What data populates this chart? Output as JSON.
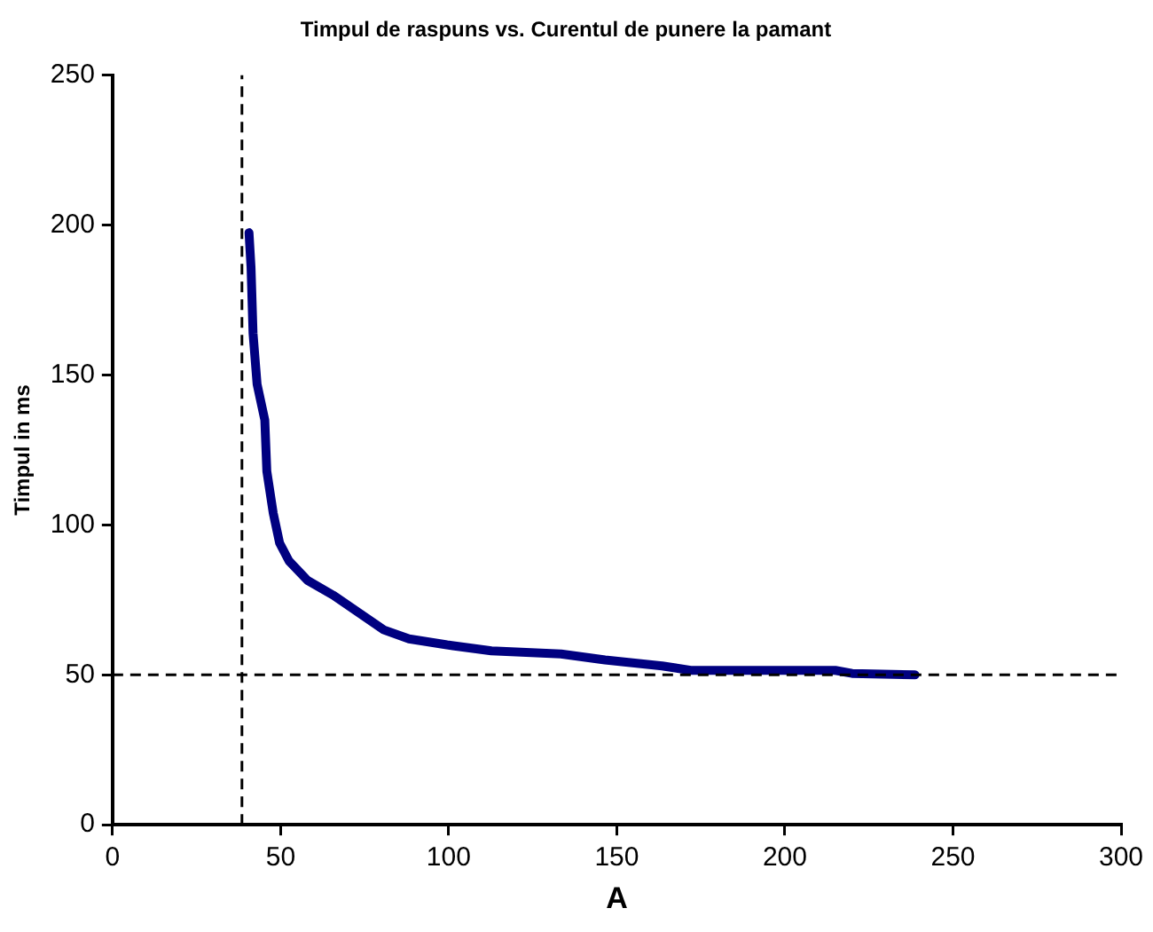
{
  "chart_data": {
    "type": "line",
    "title": "Timpul de raspuns vs. Curentul de punere la pamant",
    "xlabel": "A",
    "ylabel": "Timpul in ms",
    "xlim": [
      0,
      300
    ],
    "xticks": [
      0,
      50,
      100,
      150,
      200,
      250,
      300
    ],
    "ylim": [
      0,
      250
    ],
    "yticks": [
      0,
      50,
      100,
      150,
      200,
      250
    ],
    "grid": false,
    "legend": false,
    "marker": "none",
    "line_style": "solid",
    "series": [
      {
        "color": "#000080",
        "x": [
          40.6,
          41.2,
          41.8,
          43,
          45.3,
          45.9,
          47.8,
          49.7,
          52.5,
          58,
          65.6,
          73.2,
          80.7,
          88.2,
          99.5,
          112.7,
          133.4,
          146.5,
          163.5,
          172,
          215,
          220,
          238.7
        ],
        "values": [
          197.5,
          186,
          164,
          147,
          135,
          118,
          104,
          94,
          88,
          81.5,
          76.6,
          70.8,
          65,
          62,
          60,
          58,
          57,
          55,
          53,
          51.5,
          51.5,
          50.5,
          50
        ]
      }
    ],
    "ref_lines": [
      {
        "axis": "x",
        "value": 38.5,
        "color": "#000000",
        "line_style": "dashed"
      },
      {
        "axis": "y",
        "value": 50,
        "color": "#000000",
        "line_style": "dashed"
      }
    ]
  }
}
